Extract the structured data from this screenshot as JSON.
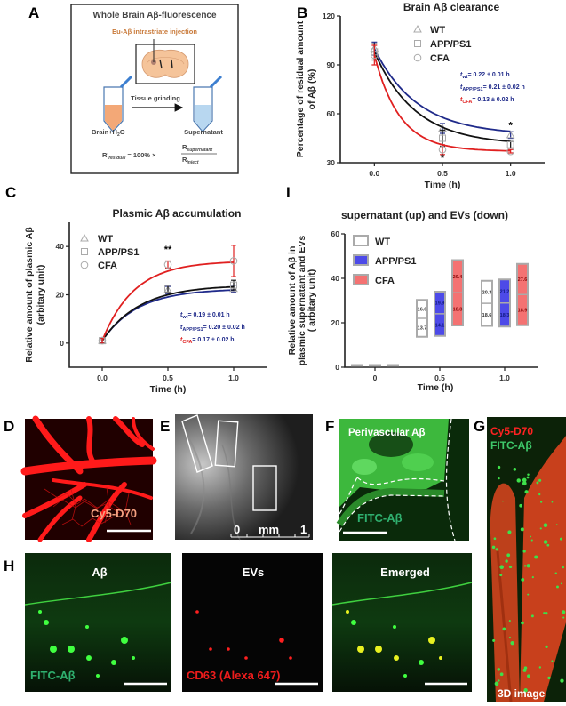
{
  "panel_labels": {
    "a": "A",
    "b": "B",
    "c": "C",
    "i": "I",
    "d": "D",
    "e": "E",
    "f": "F",
    "g": "G",
    "h": "H"
  },
  "schematic": {
    "title": "Whole Brain Aβ-fluorescence",
    "injection_label": "Eu-Aβ intrastriate injection",
    "step_label": "Tissue grinding",
    "left_tube_label": "Brain+H",
    "left_tube_label_sub": "2",
    "left_tube_label_end": "O",
    "right_tube_label": "Supernatant",
    "formula_lhs": "R'",
    "formula_lhs_sub": "residual",
    "formula_mid": "= 100% ×",
    "formula_num": "R",
    "formula_num_sub": "supernatant",
    "formula_den": "R",
    "formula_den_sub": "inject",
    "colors": {
      "brain": "#f5c49a",
      "tube_left": "#f3a877",
      "tube_right": "#b8d7f0",
      "injection_text": "#c97a3a"
    }
  },
  "chart_data": [
    {
      "id": "B",
      "type": "line",
      "title": "Brain Aβ clearance",
      "xlabel": "Time (h)",
      "ylabel": "Percentage of residual amount of Aβ (%)",
      "ylabel_lines": [
        "Percentage of residual amount",
        "of Aβ (%)"
      ],
      "xlim": [
        -0.25,
        1.25
      ],
      "ylim": [
        30,
        120
      ],
      "xticks": [
        "0.0",
        "0.5",
        "1.0"
      ],
      "yticks": [
        "30",
        "60",
        "90",
        "120"
      ],
      "x": [
        0,
        0.5,
        1.0
      ],
      "legend": "top-right",
      "series": [
        {
          "name": "WT",
          "marker": "triangle",
          "color": "#1f2a8a",
          "values": [
            100,
            51,
            47
          ],
          "errors": [
            4,
            3,
            2
          ]
        },
        {
          "name": "APP/PS1",
          "marker": "square",
          "color": "#111111",
          "values": [
            98,
            45,
            41
          ],
          "errors": [
            5,
            5,
            2
          ]
        },
        {
          "name": "CFA",
          "marker": "circle",
          "color": "#e02020",
          "values": [
            96,
            38,
            37
          ],
          "errors": [
            6,
            3,
            1
          ]
        }
      ],
      "annotations": [
        {
          "t": "t",
          "sub": "wt",
          "text": "= 0.22 ± 0.01 h",
          "color": "#1f2a8a"
        },
        {
          "t": "t",
          "sub": "APP/PS1",
          "text": "= 0.21 ± 0.02 h",
          "color": "#1f2a8a"
        },
        {
          "t": "t",
          "sub": "CFA",
          "text": "= 0.13 ± 0.02 h",
          "color": "#e02020"
        }
      ],
      "significance": [
        {
          "x": 0.5,
          "label": "*"
        },
        {
          "x": 1.0,
          "label": "*"
        }
      ]
    },
    {
      "id": "C",
      "type": "line",
      "title": "Plasmic Aβ accumulation",
      "xlabel": "Time (h)",
      "ylabel_lines": [
        "Relative amount of plasmic Aβ",
        "(arbitary unit)"
      ],
      "xlim": [
        -0.25,
        1.25
      ],
      "ylim": [
        -10,
        50
      ],
      "xticks": [
        "0.0",
        "0.5",
        "1.0"
      ],
      "yticks": [
        "0",
        "20",
        "40"
      ],
      "x": [
        0,
        0.5,
        1.0
      ],
      "legend": "top-left",
      "series": [
        {
          "name": "WT",
          "marker": "triangle",
          "color": "#1f2a8a",
          "values": [
            1,
            22,
            22.5
          ],
          "errors": [
            1,
            1.5,
            1.5
          ]
        },
        {
          "name": "APP/PS1",
          "marker": "square",
          "color": "#111111",
          "values": [
            1,
            22.5,
            24
          ],
          "errors": [
            1,
            1.5,
            2
          ]
        },
        {
          "name": "CFA",
          "marker": "circle",
          "color": "#e02020",
          "values": [
            1,
            32.5,
            34
          ],
          "errors": [
            1,
            1.5,
            6.5
          ]
        }
      ],
      "annotations": [
        {
          "t": "t",
          "sub": "wt",
          "text": "= 0.19 ± 0.01 h",
          "color": "#1f2a8a"
        },
        {
          "t": "t",
          "sub": "APP/PS1",
          "text": "= 0.20 ± 0.02 h",
          "color": "#1f2a8a"
        },
        {
          "t": "t",
          "sub": "CFA",
          "text": "= 0.17 ± 0.02 h",
          "color": "#e02020"
        }
      ],
      "significance": [
        {
          "x": 0.5,
          "label": "**"
        }
      ]
    },
    {
      "id": "I",
      "type": "bar",
      "title": "supernatant (up) and EVs (down)",
      "xlabel": "Time (h)",
      "ylabel_lines": [
        "Relative amount of  Aβ in",
        "plasmic supernatant and EVs",
        "( arbitary unit)"
      ],
      "ylim": [
        0,
        60
      ],
      "categories": [
        "0",
        "0.5",
        "1.0"
      ],
      "yticks": [
        "0",
        "20",
        "40",
        "60"
      ],
      "legend": "top-left",
      "series": [
        {
          "name": "WT",
          "color": "#ffffff",
          "ev": [
            0,
            13.7,
            18.6
          ],
          "supernatant": [
            0,
            16.6,
            20.3
          ],
          "labels_ev": [
            "",
            "13.7",
            "18.6"
          ],
          "labels_sup": [
            "",
            "16.6",
            "20.3"
          ]
        },
        {
          "name": "APP/PS1",
          "color": "#4d4ae8",
          "ev": [
            0,
            14.1,
            18.3
          ],
          "supernatant": [
            0,
            19.9,
            21.2
          ],
          "labels_ev": [
            "",
            "14.1",
            "18.3"
          ],
          "labels_sup": [
            "",
            "19.9",
            "21.2"
          ]
        },
        {
          "name": "CFA",
          "color": "#f47272",
          "ev": [
            0,
            18.8,
            18.9
          ],
          "supernatant": [
            0,
            29.4,
            27.6
          ],
          "labels_ev": [
            "",
            "18.8",
            "18.9"
          ],
          "labels_sup": [
            "",
            "29.4",
            "27.6"
          ]
        }
      ]
    }
  ],
  "images": {
    "d": {
      "label": "Cy5-D70"
    },
    "e": {
      "scale_start": "0",
      "scale_unit": "mm",
      "scale_end": "1"
    },
    "f": {
      "top_label": "Perivascular Aβ",
      "bottom_label": "FITC-Aβ"
    },
    "g": {
      "label_red": "Cy5-D70",
      "label_green": "FITC-Aβ",
      "label_bottom": "3D image"
    },
    "h": [
      {
        "title": "Aβ",
        "label": "FITC-Aβ"
      },
      {
        "title": "EVs",
        "label": "CD63 (Alexa 647)"
      },
      {
        "title": "Emerged",
        "label": ""
      }
    ]
  }
}
